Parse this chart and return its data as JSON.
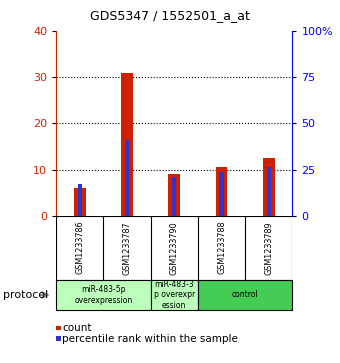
{
  "title": "GDS5347 / 1552501_a_at",
  "samples": [
    "GSM1233786",
    "GSM1233787",
    "GSM1233790",
    "GSM1233788",
    "GSM1233789"
  ],
  "count_values": [
    6,
    31,
    9,
    10.5,
    12.5
  ],
  "percentile_values": [
    7,
    16.5,
    8.5,
    9.5,
    10.5
  ],
  "ylim_left": [
    0,
    40
  ],
  "ylim_right": [
    0,
    100
  ],
  "yticks_left": [
    0,
    10,
    20,
    30,
    40
  ],
  "yticks_right": [
    0,
    25,
    50,
    75,
    100
  ],
  "ytick_labels_right": [
    "0",
    "25",
    "50",
    "75",
    "100%"
  ],
  "count_color": "#cc2200",
  "percentile_color": "#3333cc",
  "groups": [
    {
      "label": "miR-483-5p\noverexpression",
      "start": 0,
      "end": 2,
      "color": "#bbffbb"
    },
    {
      "label": "miR-483-3\np overexpr\nession",
      "start": 2,
      "end": 3,
      "color": "#bbffbb"
    },
    {
      "label": "control",
      "start": 3,
      "end": 5,
      "color": "#44cc55"
    }
  ],
  "protocol_label": "protocol",
  "legend_count": "count",
  "legend_percentile": "percentile rank within the sample",
  "background_color": "#ffffff",
  "label_area_color": "#cccccc",
  "bar_width": 0.25
}
